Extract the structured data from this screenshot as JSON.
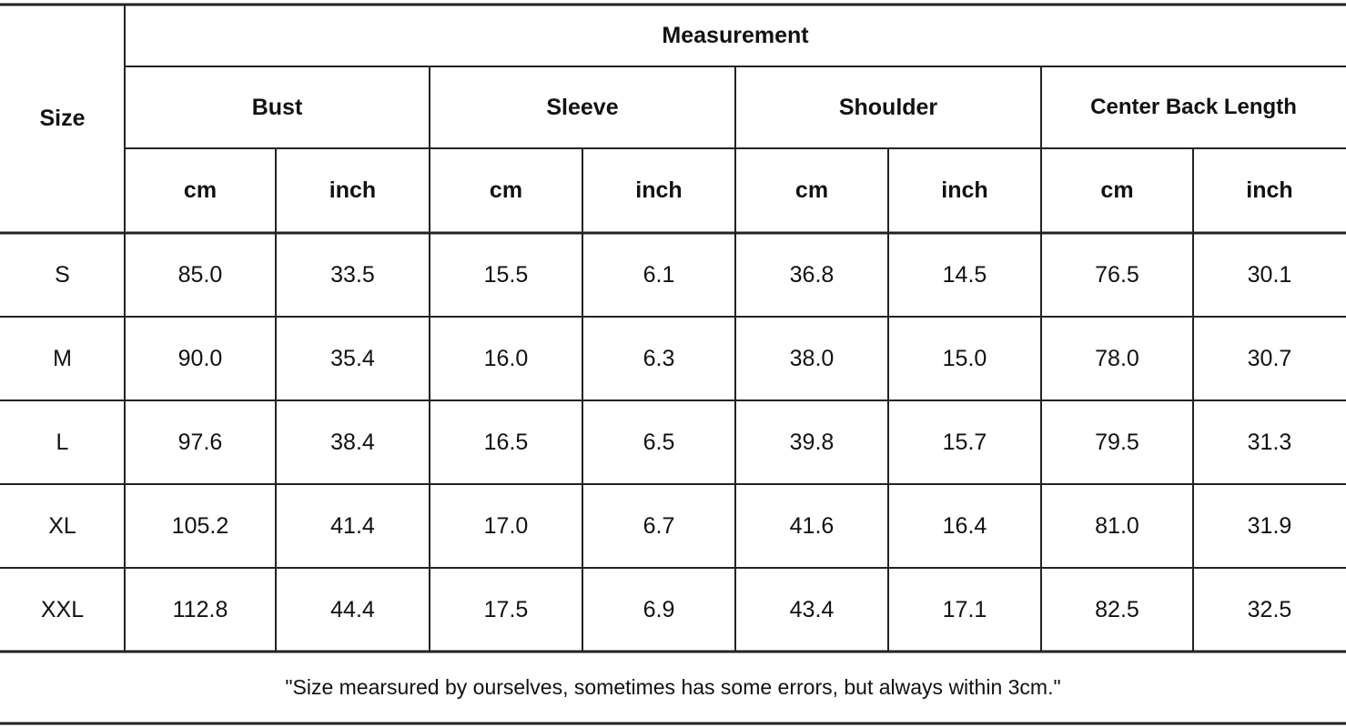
{
  "header": {
    "size": "Size",
    "group": "Measurement",
    "columns": [
      "Bust",
      "Sleeve",
      "Shoulder",
      "Center Back Length"
    ],
    "units": [
      "cm",
      "inch",
      "cm",
      "inch",
      "cm",
      "inch",
      "cm",
      "inch"
    ]
  },
  "rows": [
    {
      "size": "S",
      "values": [
        "85.0",
        "33.5",
        "15.5",
        "6.1",
        "36.8",
        "14.5",
        "76.5",
        "30.1"
      ]
    },
    {
      "size": "M",
      "values": [
        "90.0",
        "35.4",
        "16.0",
        "6.3",
        "38.0",
        "15.0",
        "78.0",
        "30.7"
      ]
    },
    {
      "size": "L",
      "values": [
        "97.6",
        "38.4",
        "16.5",
        "6.5",
        "39.8",
        "15.7",
        "79.5",
        "31.3"
      ]
    },
    {
      "size": "XL",
      "values": [
        "105.2",
        "41.4",
        "17.0",
        "6.7",
        "41.6",
        "16.4",
        "81.0",
        "31.9"
      ]
    },
    {
      "size": "XXL",
      "values": [
        "112.8",
        "44.4",
        "17.5",
        "6.9",
        "43.4",
        "17.1",
        "82.5",
        "32.5"
      ]
    }
  ],
  "note": "\"Size mearsured by ourselves, sometimes has some errors, but always within 3cm.\""
}
